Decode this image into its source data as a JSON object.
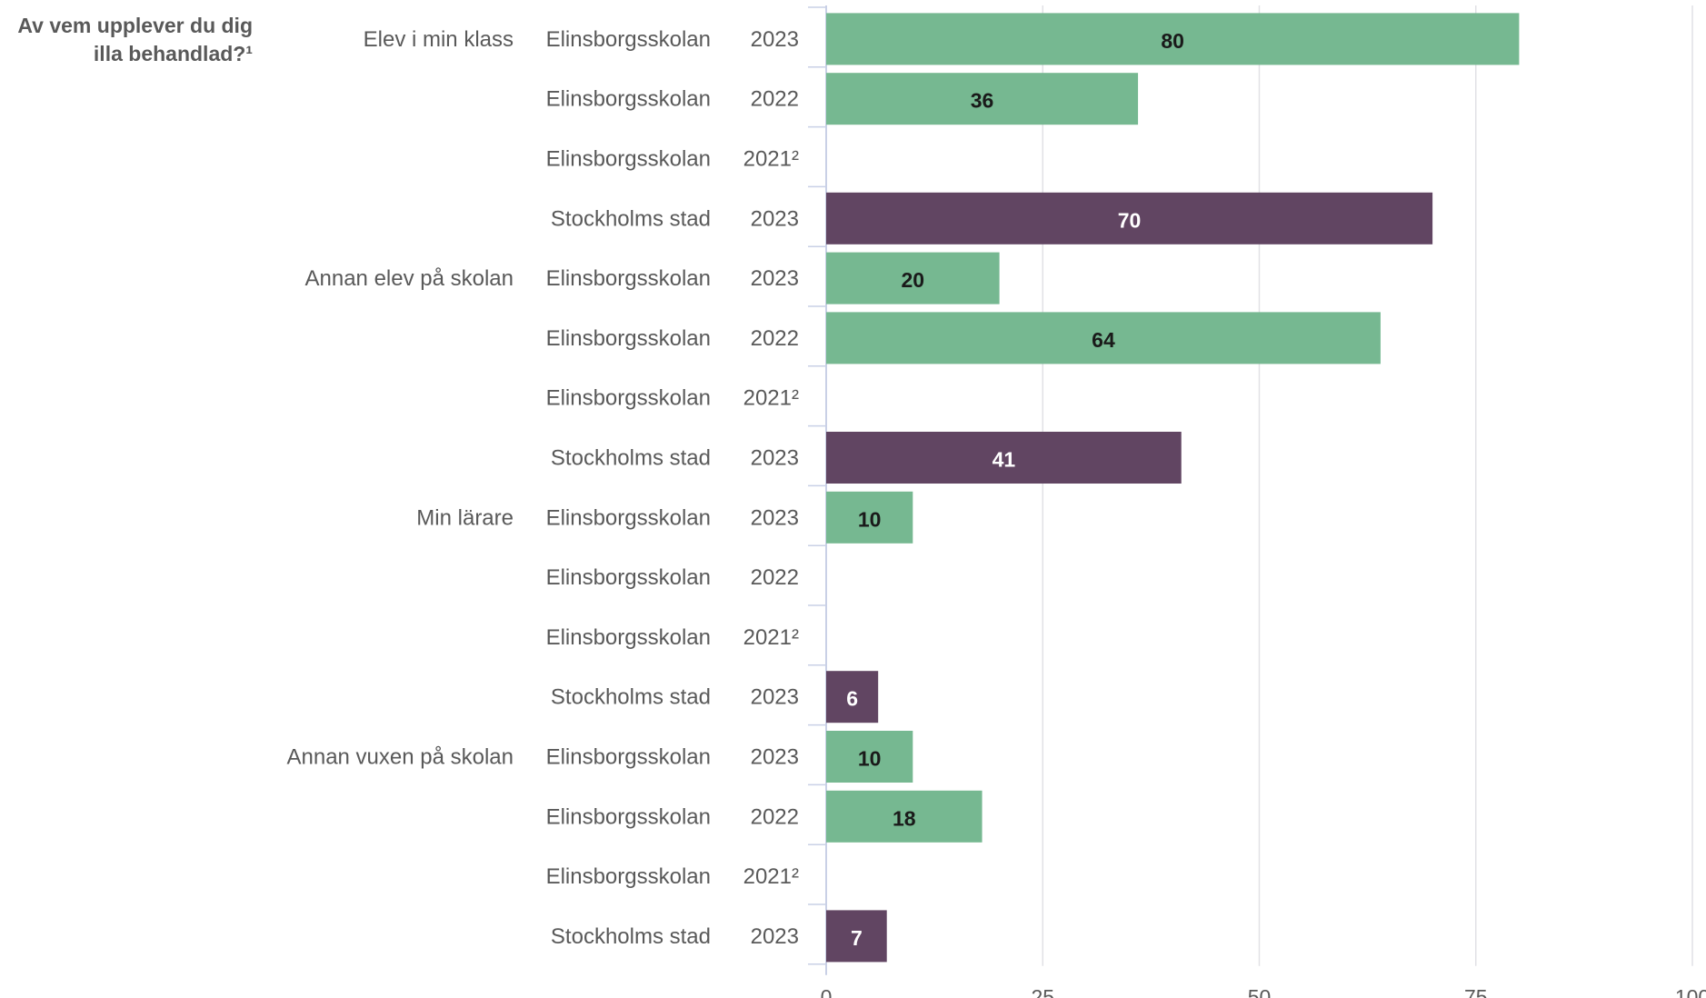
{
  "chart_data": {
    "type": "bar",
    "orientation": "horizontal",
    "title": "Av vem upplever du dig illa behandlad?¹",
    "title_lines": [
      "Av vem upplever du dig",
      "illa behandlad?¹"
    ],
    "xlim": [
      0,
      100
    ],
    "xticks": [
      0,
      25,
      50,
      75,
      100
    ],
    "grid": true,
    "colors": {
      "school": "#76b891",
      "city": "#614562",
      "school_label": "#1a1a1a",
      "city_label": "#ffffff"
    },
    "groups": [
      {
        "name": "Elev i min klass",
        "rows": [
          {
            "unit": "Elinsborgsskolan",
            "year": "2023",
            "value": 80,
            "kind": "school"
          },
          {
            "unit": "Elinsborgsskolan",
            "year": "2022",
            "value": 36,
            "kind": "school"
          },
          {
            "unit": "Elinsborgsskolan",
            "year": "2021²",
            "value": null,
            "kind": "school"
          },
          {
            "unit": "Stockholms stad",
            "year": "2023",
            "value": 70,
            "kind": "city"
          }
        ]
      },
      {
        "name": "Annan elev på skolan",
        "rows": [
          {
            "unit": "Elinsborgsskolan",
            "year": "2023",
            "value": 20,
            "kind": "school"
          },
          {
            "unit": "Elinsborgsskolan",
            "year": "2022",
            "value": 64,
            "kind": "school"
          },
          {
            "unit": "Elinsborgsskolan",
            "year": "2021²",
            "value": null,
            "kind": "school"
          },
          {
            "unit": "Stockholms stad",
            "year": "2023",
            "value": 41,
            "kind": "city"
          }
        ]
      },
      {
        "name": "Min lärare",
        "rows": [
          {
            "unit": "Elinsborgsskolan",
            "year": "2023",
            "value": 10,
            "kind": "school"
          },
          {
            "unit": "Elinsborgsskolan",
            "year": "2022",
            "value": null,
            "kind": "school"
          },
          {
            "unit": "Elinsborgsskolan",
            "year": "2021²",
            "value": null,
            "kind": "school"
          },
          {
            "unit": "Stockholms stad",
            "year": "2023",
            "value": 6,
            "kind": "city"
          }
        ]
      },
      {
        "name": "Annan vuxen på skolan",
        "rows": [
          {
            "unit": "Elinsborgsskolan",
            "year": "2023",
            "value": 10,
            "kind": "school"
          },
          {
            "unit": "Elinsborgsskolan",
            "year": "2022",
            "value": 18,
            "kind": "school"
          },
          {
            "unit": "Elinsborgsskolan",
            "year": "2021²",
            "value": null,
            "kind": "school"
          },
          {
            "unit": "Stockholms stad",
            "year": "2023",
            "value": 7,
            "kind": "city"
          }
        ]
      }
    ]
  }
}
